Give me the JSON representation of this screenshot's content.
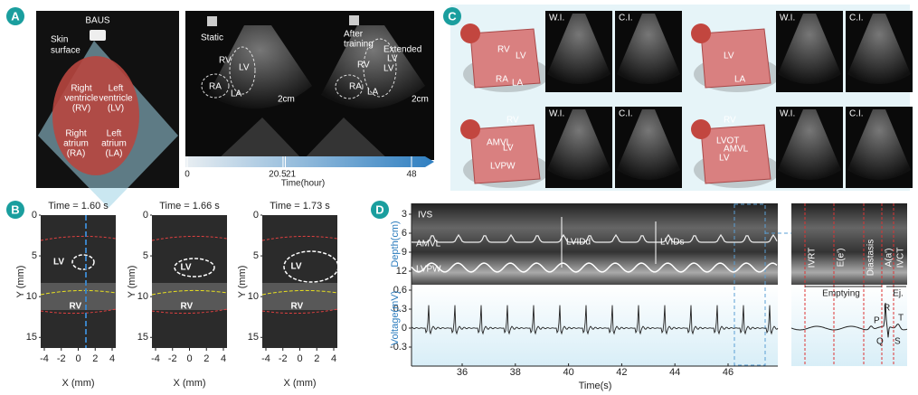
{
  "panel_a": {
    "label": "A",
    "baus": "BAUS",
    "skin": [
      "Skin",
      "surface"
    ],
    "rv": [
      "Right",
      "ventricle",
      "(RV)"
    ],
    "lv": [
      "Left",
      "ventricle",
      "(LV)"
    ],
    "ra": [
      "Right",
      "atrium",
      "(RA)"
    ],
    "la": [
      "Left",
      "atrium",
      "(LA)"
    ],
    "static": "Static",
    "after": [
      "After",
      "training"
    ],
    "static_labels": [
      "RV",
      "LV",
      "RA",
      "LA"
    ],
    "after_labels": [
      "RV",
      "LV",
      "RA",
      "LA"
    ],
    "extended": [
      "Extended",
      "LV"
    ],
    "scale": "2cm",
    "timeline_ticks": [
      0,
      20.5,
      21,
      48
    ],
    "timeline_label": "Time(hour)"
  },
  "panel_b": {
    "label": "B",
    "titles": [
      "Time = 1.60 s",
      "Time = 1.66 s",
      "Time = 1.73 s"
    ],
    "lv": "LV",
    "rv": "RV",
    "y_label": "Y (mm)",
    "yticks": [
      0,
      5,
      10,
      15
    ],
    "x_label": "X (mm)",
    "xticks": [
      -4,
      -2,
      0,
      2,
      4
    ]
  },
  "panel_c": {
    "label": "C",
    "wi": "W.I.",
    "ci": "C.I.",
    "views": [
      {
        "labels": [
          "RV",
          "LV",
          "RA",
          "LA"
        ]
      },
      {
        "labels": [
          "LV",
          "LA"
        ]
      },
      {
        "labels": [
          "RV",
          "AMVL",
          "LV",
          "LVPW"
        ]
      },
      {
        "labels": [
          "RV",
          "LVOT",
          "AMVL",
          "LV"
        ]
      }
    ]
  },
  "panel_d": {
    "label": "D",
    "depth_label": "Depth(cm)",
    "depth_ticks": [
      3,
      6,
      9,
      12
    ],
    "voltage_label": "Voltage(mV)",
    "voltage_ticks": [
      0.6,
      0.3,
      0,
      -0.3
    ],
    "time_ticks": [
      36,
      38,
      40,
      42,
      44,
      46
    ],
    "time_label": "Time(s)",
    "structures": [
      "IVS",
      "AMVL",
      "LVPW"
    ],
    "measures": [
      "LVIDd",
      "LVIDs"
    ],
    "phases": [
      "IVRT",
      "E(e')",
      "Diastasis",
      "A(a')",
      "IVCT"
    ],
    "emptying": "Emptying",
    "ejection": "Ej.",
    "waves": [
      "P",
      "R",
      "T",
      "Q",
      "S"
    ]
  }
}
